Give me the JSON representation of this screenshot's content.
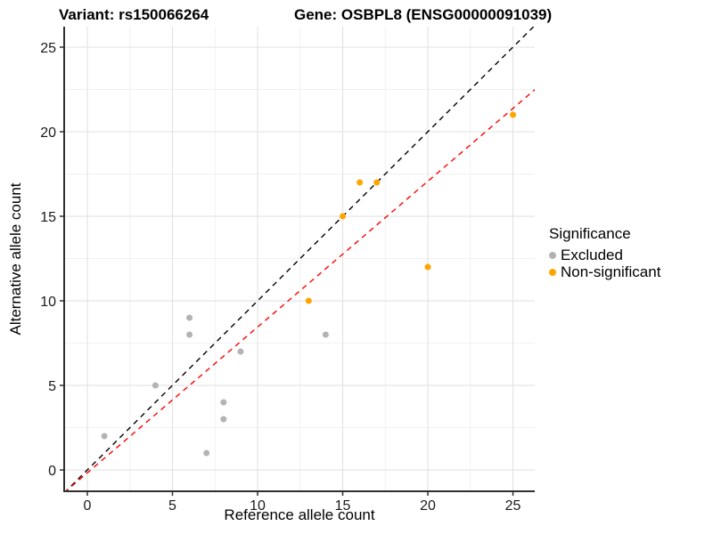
{
  "titles": {
    "left": "Variant: rs150066264",
    "right": "Gene: OSBPL8 (ENSG00000091039)"
  },
  "chart_data": {
    "type": "scatter",
    "xlabel": "Reference allele count",
    "ylabel": "Alternative allele count",
    "xlim": [
      -1.36,
      26.28
    ],
    "ylim": [
      -1.26,
      26.21
    ],
    "xticks": [
      0,
      5,
      10,
      15,
      20,
      25
    ],
    "yticks": [
      0,
      5,
      10,
      15,
      20,
      25
    ],
    "grid": "major+minor",
    "colors": {
      "excluded": "#B3B3B3",
      "non_significant": "#FFA500",
      "identity_line": "#000000",
      "fit_line": "#FF0000",
      "grid_major": "#E2E2E2",
      "grid_minor": "#F0F0F0",
      "axis_line": "#2F2F2F"
    },
    "series": [
      {
        "name": "Excluded",
        "color": "#B3B3B3",
        "points": [
          [
            1,
            2
          ],
          [
            4,
            5
          ],
          [
            6,
            8
          ],
          [
            6,
            9
          ],
          [
            7,
            1
          ],
          [
            8,
            3
          ],
          [
            8,
            4
          ],
          [
            9,
            7
          ],
          [
            14,
            8
          ]
        ]
      },
      {
        "name": "Non-significant",
        "color": "#FFA500",
        "points": [
          [
            13,
            10
          ],
          [
            15,
            15
          ],
          [
            16,
            17
          ],
          [
            17,
            17
          ],
          [
            20,
            12
          ],
          [
            25,
            21
          ]
        ]
      }
    ],
    "lines": [
      {
        "name": "identity-line",
        "color": "#000000",
        "slope": 1,
        "intercept": 0,
        "dash": "6,5"
      },
      {
        "name": "fit-line",
        "color": "#FF0000",
        "slope": 0.862,
        "intercept": -0.17,
        "dash": "6,5"
      }
    ],
    "legend": {
      "title": "Significance",
      "position": "right",
      "items": [
        {
          "label": "Excluded",
          "color": "#B3B3B3"
        },
        {
          "label": "Non-significant",
          "color": "#FFA500"
        }
      ]
    }
  }
}
